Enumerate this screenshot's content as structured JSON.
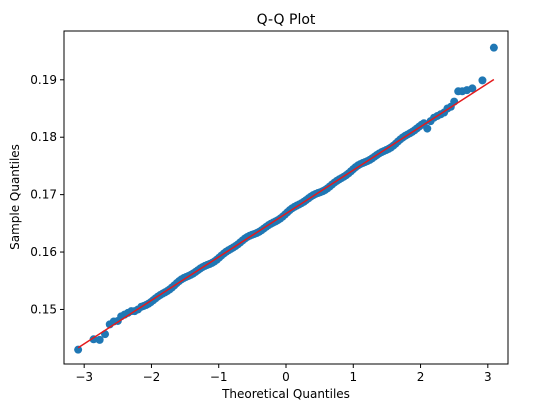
{
  "chart_data": {
    "type": "scatter",
    "title": "Q-Q Plot",
    "xlabel": "Theoretical Quantiles",
    "ylabel": "Sample Quantiles",
    "xlim": [
      -3.3,
      3.3
    ],
    "ylim": [
      0.1405,
      0.1985
    ],
    "xticks": [
      -3,
      -2,
      -1,
      0,
      1,
      2,
      3
    ],
    "xtick_labels": [
      "−3",
      "−2",
      "−1",
      "0",
      "1",
      "2",
      "3"
    ],
    "yticks": [
      0.15,
      0.16,
      0.17,
      0.18,
      0.19
    ],
    "ytick_labels": [
      "0.15",
      "0.16",
      "0.17",
      "0.18",
      "0.19"
    ],
    "grid": false,
    "marker_color": "#1f77b4",
    "line_color": "#e41a1c",
    "reference_line": {
      "slope": 0.00756,
      "intercept": 0.1667
    },
    "tail_points": [
      {
        "x": -3.09,
        "y": 0.143
      },
      {
        "x": -2.86,
        "y": 0.1448
      },
      {
        "x": -2.77,
        "y": 0.1447
      },
      {
        "x": -2.69,
        "y": 0.1457
      },
      {
        "x": -2.62,
        "y": 0.1474
      },
      {
        "x": -2.56,
        "y": 0.1479
      },
      {
        "x": -2.5,
        "y": 0.148
      },
      {
        "x": -2.45,
        "y": 0.1488
      },
      {
        "x": -2.4,
        "y": 0.1491
      },
      {
        "x": -2.35,
        "y": 0.1494
      },
      {
        "x": -2.3,
        "y": 0.1497
      },
      {
        "x": -2.25,
        "y": 0.1497
      },
      {
        "x": -2.2,
        "y": 0.15
      },
      {
        "x": 2.1,
        "y": 0.1815
      },
      {
        "x": 2.15,
        "y": 0.1828
      },
      {
        "x": 2.2,
        "y": 0.1834
      },
      {
        "x": 2.25,
        "y": 0.1837
      },
      {
        "x": 2.3,
        "y": 0.184
      },
      {
        "x": 2.35,
        "y": 0.1843
      },
      {
        "x": 2.4,
        "y": 0.185
      },
      {
        "x": 2.45,
        "y": 0.1853
      },
      {
        "x": 2.5,
        "y": 0.1862
      },
      {
        "x": 2.56,
        "y": 0.188
      },
      {
        "x": 2.62,
        "y": 0.188
      },
      {
        "x": 2.69,
        "y": 0.1882
      },
      {
        "x": 2.77,
        "y": 0.1885
      },
      {
        "x": 2.92,
        "y": 0.1899
      },
      {
        "x": 3.09,
        "y": 0.1956
      }
    ],
    "body_points": {
      "x_start": -2.15,
      "x_end": 2.05,
      "step": 0.035,
      "slope": 0.00756,
      "intercept": 0.1667
    }
  }
}
